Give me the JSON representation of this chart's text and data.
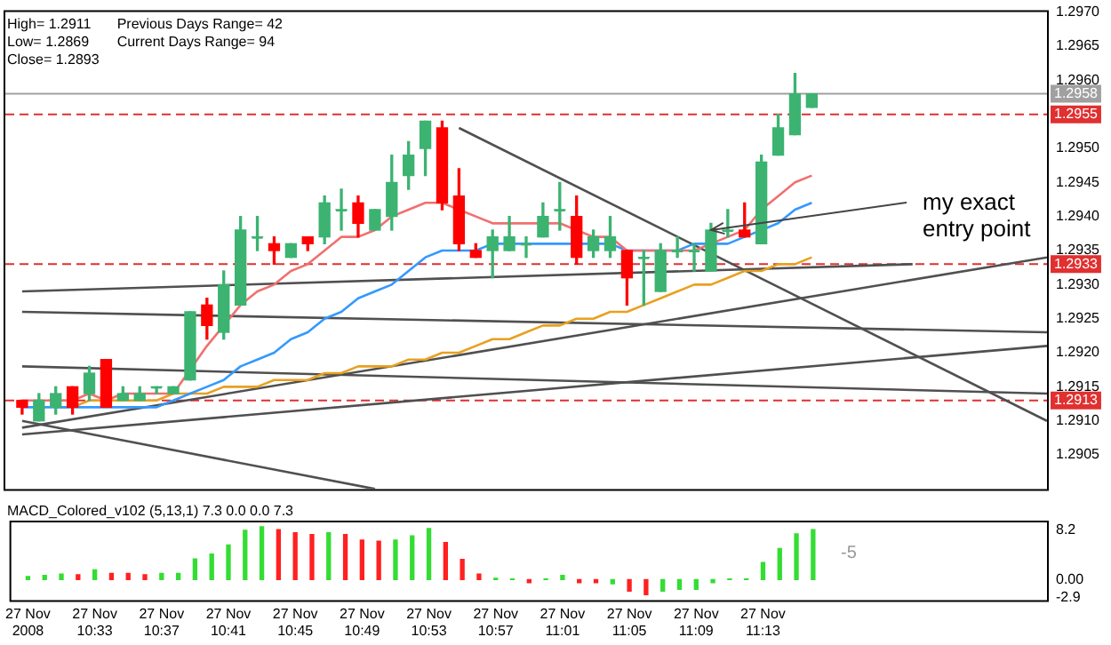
{
  "chart_data": [
    {
      "type": "candlestick",
      "x": [
        "2008-11-27T10:29",
        "2008-11-27T10:30",
        "2008-11-27T10:31",
        "2008-11-27T10:32",
        "2008-11-27T10:33",
        "2008-11-27T10:34",
        "2008-11-27T10:35",
        "2008-11-27T10:36",
        "2008-11-27T10:37",
        "2008-11-27T10:38",
        "2008-11-27T10:39",
        "2008-11-27T10:40",
        "2008-11-27T10:41",
        "2008-11-27T10:42",
        "2008-11-27T10:43",
        "2008-11-27T10:44",
        "2008-11-27T10:45",
        "2008-11-27T10:46",
        "2008-11-27T10:47",
        "2008-11-27T10:48",
        "2008-11-27T10:49",
        "2008-11-27T10:50",
        "2008-11-27T10:51",
        "2008-11-27T10:52",
        "2008-11-27T10:53",
        "2008-11-27T10:54",
        "2008-11-27T10:55",
        "2008-11-27T10:56",
        "2008-11-27T10:57",
        "2008-11-27T10:58",
        "2008-11-27T10:59",
        "2008-11-27T11:00",
        "2008-11-27T11:01",
        "2008-11-27T11:02",
        "2008-11-27T11:03",
        "2008-11-27T11:04",
        "2008-11-27T11:05",
        "2008-11-27T11:06",
        "2008-11-27T11:07",
        "2008-11-27T11:08",
        "2008-11-27T11:09",
        "2008-11-27T11:10",
        "2008-11-27T11:11",
        "2008-11-27T11:12",
        "2008-11-27T11:13",
        "2008-11-27T11:14",
        "2008-11-27T11:15",
        "2008-11-27T11:16"
      ],
      "ohlc": [
        [
          1.2913,
          1.2913,
          1.2911,
          1.2912
        ],
        [
          1.291,
          1.2914,
          1.291,
          1.2913
        ],
        [
          1.2912,
          1.2915,
          1.2911,
          1.2914
        ],
        [
          1.2915,
          1.2915,
          1.2911,
          1.2912
        ],
        [
          1.2914,
          1.2918,
          1.2913,
          1.2917
        ],
        [
          1.2919,
          1.2919,
          1.2912,
          1.2912
        ],
        [
          1.2913,
          1.2915,
          1.2913,
          1.2914
        ],
        [
          1.2913,
          1.2915,
          1.2913,
          1.2914
        ],
        [
          1.2915,
          1.2915,
          1.2914,
          1.2915
        ],
        [
          1.2914,
          1.2915,
          1.2914,
          1.2915
        ],
        [
          1.2916,
          1.2926,
          1.2916,
          1.2926
        ],
        [
          1.2927,
          1.2928,
          1.2922,
          1.2924
        ],
        [
          1.2923,
          1.2932,
          1.2922,
          1.293
        ],
        [
          1.2927,
          1.294,
          1.2927,
          1.2938
        ],
        [
          1.2937,
          1.294,
          1.2935,
          1.2937
        ],
        [
          1.2936,
          1.2937,
          1.2933,
          1.2935
        ],
        [
          1.2934,
          1.2936,
          1.2934,
          1.2936
        ],
        [
          1.2937,
          1.2937,
          1.2935,
          1.2936
        ],
        [
          1.2937,
          1.2943,
          1.2936,
          1.2942
        ],
        [
          1.2941,
          1.2944,
          1.2938,
          1.2941
        ],
        [
          1.2942,
          1.2943,
          1.2937,
          1.2939
        ],
        [
          1.2938,
          1.2941,
          1.2938,
          1.2941
        ],
        [
          1.294,
          1.2949,
          1.2938,
          1.2945
        ],
        [
          1.2946,
          1.2951,
          1.2944,
          1.2949
        ],
        [
          1.295,
          1.2954,
          1.2946,
          1.2954
        ],
        [
          1.2953,
          1.2954,
          1.2941,
          1.2942
        ],
        [
          1.2943,
          1.2947,
          1.2935,
          1.2936
        ],
        [
          1.2935,
          1.2936,
          1.2934,
          1.2934
        ],
        [
          1.2935,
          1.2938,
          1.2931,
          1.2937
        ],
        [
          1.2935,
          1.294,
          1.2935,
          1.2937
        ],
        [
          1.2936,
          1.2937,
          1.2934,
          1.2936
        ],
        [
          1.2937,
          1.2942,
          1.2937,
          1.294
        ],
        [
          1.2941,
          1.2945,
          1.2938,
          1.2941
        ],
        [
          1.294,
          1.2943,
          1.2933,
          1.2934
        ],
        [
          1.2935,
          1.2938,
          1.2934,
          1.2937
        ],
        [
          1.2935,
          1.294,
          1.2934,
          1.2937
        ],
        [
          1.2935,
          1.2935,
          1.2927,
          1.2931
        ],
        [
          1.2934,
          1.2935,
          1.2927,
          1.2934
        ],
        [
          1.2929,
          1.2936,
          1.2929,
          1.2935
        ],
        [
          1.2935,
          1.2937,
          1.2934,
          1.2935
        ],
        [
          1.2935,
          1.2936,
          1.2932,
          1.2935
        ],
        [
          1.2932,
          1.2939,
          1.2932,
          1.2938
        ],
        [
          1.2938,
          1.2941,
          1.2937,
          1.2938
        ],
        [
          1.2938,
          1.2942,
          1.2937,
          1.2937
        ],
        [
          1.2936,
          1.2949,
          1.2936,
          1.2948
        ],
        [
          1.2949,
          1.2955,
          1.2949,
          1.2953
        ],
        [
          1.2952,
          1.2961,
          1.2952,
          1.2958
        ],
        [
          1.2956,
          1.2958,
          1.2956,
          1.2958
        ]
      ],
      "colors": [
        "#ff0000",
        "#3cb371",
        "#3cb371",
        "#ff0000",
        "#3cb371",
        "#ff0000",
        "#3cb371",
        "#3cb371",
        "#3cb371",
        "#3cb371",
        "#3cb371",
        "#ff0000",
        "#3cb371",
        "#3cb371",
        "#3cb371",
        "#ff0000",
        "#3cb371",
        "#ff0000",
        "#3cb371",
        "#3cb371",
        "#ff0000",
        "#3cb371",
        "#3cb371",
        "#3cb371",
        "#3cb371",
        "#ff0000",
        "#ff0000",
        "#ff0000",
        "#3cb371",
        "#3cb371",
        "#3cb371",
        "#3cb371",
        "#3cb371",
        "#ff0000",
        "#3cb371",
        "#3cb371",
        "#ff0000",
        "#3cb371",
        "#3cb371",
        "#3cb371",
        "#3cb371",
        "#3cb371",
        "#3cb371",
        "#ff0000",
        "#3cb371",
        "#3cb371",
        "#3cb371",
        "#3cb371"
      ],
      "series": [
        {
          "type": "line",
          "color": "#f07070",
          "values": [
            1.2913,
            1.2913,
            1.2913,
            1.2913,
            1.2914,
            1.2913,
            1.2914,
            1.2914,
            1.2914,
            1.2914,
            null,
            1.2921,
            1.2924,
            1.2927,
            1.2929,
            1.293,
            1.2932,
            1.2933,
            1.2935,
            1.2937,
            1.2937,
            1.2938,
            1.294,
            1.2941,
            1.2942,
            1.2942,
            1.2941,
            1.294,
            1.2939,
            1.2939,
            1.2939,
            1.2939,
            1.2939,
            1.2938,
            1.2937,
            1.2937,
            1.2935,
            1.2935,
            1.2935,
            1.2935,
            1.2935,
            1.2936,
            1.2937,
            1.2938,
            1.2941,
            1.2943,
            1.2945,
            1.2946
          ]
        },
        {
          "type": "line",
          "color": "#3399ff",
          "values": [
            1.2912,
            1.2912,
            1.2912,
            1.2912,
            1.2912,
            1.2912,
            1.2912,
            1.2912,
            1.2912,
            1.2913,
            1.2914,
            1.2915,
            1.2916,
            1.2918,
            1.2919,
            1.292,
            1.2922,
            1.2923,
            1.2925,
            1.2926,
            1.2928,
            1.2929,
            1.293,
            1.2932,
            1.2934,
            1.2935,
            1.2935,
            1.2935,
            1.2936,
            1.2936,
            1.2936,
            1.2936,
            1.2936,
            1.2936,
            1.2936,
            1.2936,
            1.2935,
            null,
            null,
            1.2935,
            1.2936,
            1.2936,
            1.2936,
            1.2937,
            1.2938,
            1.2939,
            1.2941,
            1.2942
          ]
        },
        {
          "type": "line",
          "color": "#e8a020",
          "values": [
            null,
            null,
            1.2912,
            1.2912,
            1.2913,
            1.2913,
            1.2913,
            1.2913,
            1.2913,
            1.2914,
            1.2914,
            1.2914,
            1.2915,
            1.2915,
            1.2915,
            1.2916,
            1.2916,
            1.2916,
            1.2917,
            1.2917,
            1.2918,
            1.2918,
            1.2918,
            1.2919,
            1.2919,
            1.292,
            1.292,
            1.2921,
            1.2922,
            1.2922,
            1.2923,
            1.2924,
            1.2924,
            1.2925,
            1.2925,
            1.2926,
            1.2926,
            1.2927,
            1.2928,
            1.2929,
            1.293,
            1.293,
            1.2931,
            1.2932,
            1.2932,
            1.2933,
            1.2933,
            1.2934
          ]
        },
        {
          "type": "line",
          "color": "#505050",
          "x": [
            "2008-11-27T10:55",
            "2008-11-27T11:30"
          ],
          "values": [
            1.2953,
            1.291
          ]
        },
        {
          "type": "line",
          "color": "#505050",
          "x": [
            "2008-11-27T10:29",
            "2008-11-27T10:50"
          ],
          "values": [
            1.291,
            1.29
          ]
        },
        {
          "type": "line",
          "color": "#505050",
          "x": [
            "2008-11-27T10:29",
            "2008-11-27T11:30"
          ],
          "values": [
            1.2908,
            1.2921
          ]
        },
        {
          "type": "line",
          "color": "#505050",
          "x": [
            "2008-11-27T10:29",
            "2008-11-27T11:22"
          ],
          "values": [
            1.2929,
            1.2933
          ]
        },
        {
          "type": "line",
          "color": "#505050",
          "x": [
            "2008-11-27T10:29",
            "2008-11-27T11:30"
          ],
          "values": [
            1.2926,
            1.2923
          ]
        },
        {
          "type": "line",
          "color": "#505050",
          "x": [
            "2008-11-27T10:29",
            "2008-11-27T11:30"
          ],
          "values": [
            1.2918,
            1.2914
          ]
        },
        {
          "type": "line",
          "color": "#505050",
          "x": [
            "2008-11-27T10:29",
            "2008-11-27T11:30"
          ],
          "values": [
            1.2909,
            1.2934
          ]
        }
      ],
      "ref_lines": [
        {
          "axis": "y",
          "value": 1.2958,
          "label": "1.2958",
          "color": "#a0a0a0",
          "line_style": "solid"
        },
        {
          "axis": "y",
          "value": 1.2955,
          "label": "1.2955",
          "color": "#e03030",
          "line_style": "dashed"
        },
        {
          "axis": "y",
          "value": 1.2933,
          "label": "1.2933",
          "color": "#e03030",
          "line_style": "dashed"
        },
        {
          "axis": "y",
          "value": 1.2913,
          "label": "1.2913",
          "color": "#e03030",
          "line_style": "dashed"
        }
      ],
      "annotations": [
        "High= 1.2911",
        "Previous Days Range= 42",
        "Low= 1.2869",
        "Current Days Range= 94",
        "Close= 1.2893",
        {
          "text": "my exact entry point",
          "x": "2008-11-27T11:10",
          "y": 1.2938
        }
      ],
      "xlim": [
        "2008-11-27T10:28",
        "2008-11-27T11:30"
      ],
      "ylim": [
        1.29,
        1.297
      ],
      "yticks": [
        1.2905,
        {
          "value": 1.291,
          "label": "1.2910"
        },
        1.2915,
        {
          "value": 1.292,
          "label": "1.2920"
        },
        1.2925,
        {
          "value": 1.293,
          "label": "1.2930"
        },
        1.2935,
        {
          "value": 1.294,
          "label": "1.2940"
        },
        1.2945,
        {
          "value": 1.295,
          "label": "1.2950"
        },
        {
          "value": 1.2955,
          "label": null
        },
        {
          "value": 1.296,
          "label": "1.2960"
        },
        1.2965,
        {
          "value": 1.297,
          "label": "1.2970"
        }
      ],
      "tick_labels": "y"
    },
    {
      "type": "bar",
      "x": [
        "2008-11-27T10:29",
        "2008-11-27T10:30",
        "2008-11-27T10:31",
        "2008-11-27T10:32",
        "2008-11-27T10:33",
        "2008-11-27T10:34",
        "2008-11-27T10:35",
        "2008-11-27T10:36",
        "2008-11-27T10:37",
        "2008-11-27T10:38",
        "2008-11-27T10:39",
        "2008-11-27T10:40",
        "2008-11-27T10:41",
        "2008-11-27T10:42",
        "2008-11-27T10:43",
        "2008-11-27T10:44",
        "2008-11-27T10:45",
        "2008-11-27T10:46",
        "2008-11-27T10:47",
        "2008-11-27T10:48",
        "2008-11-27T10:49",
        "2008-11-27T10:50",
        "2008-11-27T10:51",
        "2008-11-27T10:52",
        "2008-11-27T10:53",
        "2008-11-27T10:54",
        "2008-11-27T10:55",
        "2008-11-27T10:56",
        "2008-11-27T10:57",
        "2008-11-27T10:58",
        "2008-11-27T10:59",
        "2008-11-27T11:00",
        "2008-11-27T11:01",
        "2008-11-27T11:02",
        "2008-11-27T11:03",
        "2008-11-27T11:04",
        "2008-11-27T11:05",
        "2008-11-27T11:06",
        "2008-11-27T11:07",
        "2008-11-27T11:08",
        "2008-11-27T11:09",
        "2008-11-27T11:10",
        "2008-11-27T11:11",
        "2008-11-27T11:12",
        "2008-11-27T11:13",
        "2008-11-27T11:14",
        "2008-11-27T11:15",
        "2008-11-27T11:16"
      ],
      "values": [
        0.5,
        0.7,
        0.9,
        0.8,
        1.6,
        1.0,
        1.0,
        0.8,
        1.0,
        1.0,
        3.4,
        4.2,
        5.7,
        8.1,
        8.7,
        8.2,
        7.7,
        7.4,
        7.7,
        7.4,
        6.5,
        6.3,
        6.5,
        7.2,
        8.4,
        6.1,
        3.3,
        0.9,
        0.2,
        0.1,
        -0.5,
        0.1,
        0.7,
        -0.5,
        -0.5,
        -0.7,
        -1.9,
        -2.5,
        -1.9,
        -1.6,
        -1.6,
        -0.5,
        0.1,
        0.1,
        2.8,
        5.1,
        7.5,
        8.2
      ],
      "colors": [
        "#33dd33",
        "#33dd33",
        "#33dd33",
        "#ff2020",
        "#33dd33",
        "#ff2020",
        "#ff2020",
        "#ff2020",
        "#33dd33",
        "#33dd33",
        "#33dd33",
        "#33dd33",
        "#33dd33",
        "#33dd33",
        "#33dd33",
        "#ff2020",
        "#ff2020",
        "#ff2020",
        "#33dd33",
        "#ff2020",
        "#ff2020",
        "#ff2020",
        "#33dd33",
        "#33dd33",
        "#33dd33",
        "#ff2020",
        "#ff2020",
        "#ff2020",
        "#33dd33",
        "#33dd33",
        "#ff2020",
        "#33dd33",
        "#33dd33",
        "#ff2020",
        "#ff2020",
        "#33dd33",
        "#ff2020",
        "#ff2020",
        "#33dd33",
        "#33dd33",
        "#33dd33",
        "#33dd33",
        "#33dd33",
        "#33dd33",
        "#33dd33",
        "#33dd33",
        "#33dd33",
        "#33dd33"
      ],
      "annotations": [
        "MACD_Colored_v102 (5,13,1) 7.3 0.0 0.0 7.3",
        "-5"
      ],
      "xlim": [
        "2008-11-27T10:28",
        "2008-11-27T11:30"
      ],
      "xticks": [
        {
          "value": "2008-11-27T10:29",
          "label": "27 Nov 2008"
        },
        {
          "value": "2008-11-27T10:33",
          "label": "27 Nov 10:33"
        },
        {
          "value": "2008-11-27T10:37",
          "label": "27 Nov 10:37"
        },
        {
          "value": "2008-11-27T10:41",
          "label": "27 Nov 10:41"
        },
        {
          "value": "2008-11-27T10:45",
          "label": "27 Nov 10:45"
        },
        {
          "value": "2008-11-27T10:49",
          "label": "27 Nov 10:49"
        },
        {
          "value": "2008-11-27T10:53",
          "label": "27 Nov 10:53"
        },
        {
          "value": "2008-11-27T10:57",
          "label": "27 Nov 10:57"
        },
        {
          "value": "2008-11-27T11:01",
          "label": "27 Nov 11:01"
        },
        {
          "value": "2008-11-27T11:05",
          "label": "27 Nov 11:05"
        },
        {
          "value": "2008-11-27T11:09",
          "label": "27 Nov 11:09"
        },
        {
          "value": "2008-11-27T11:13",
          "label": "27 Nov 11:13"
        }
      ],
      "ylim": [
        -3.4,
        9.4
      ],
      "yticks": [
        8.2,
        {
          "value": 0,
          "label": "0.00"
        },
        -2.9
      ]
    }
  ]
}
